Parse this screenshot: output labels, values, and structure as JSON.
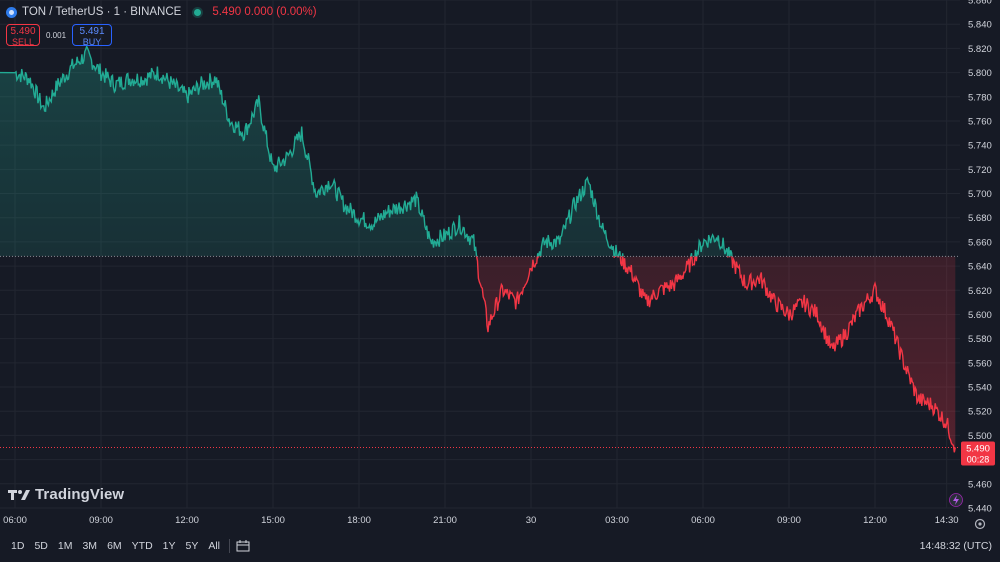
{
  "header": {
    "symbol_icon": "ton-coin-icon",
    "symbol_title": "TON / TetherUS · 1 · BINANCE",
    "quote": "5.490 0.000 (0.00%)"
  },
  "trade": {
    "sell_price": "5.490",
    "sell_label": "SELL",
    "spread": "0.001",
    "buy_price": "5.491",
    "buy_label": "BUY"
  },
  "branding": {
    "logo_text": "TradingView"
  },
  "price_tag": {
    "price": "5.490",
    "countdown": "00:28"
  },
  "periods": [
    "1D",
    "5D",
    "1M",
    "3M",
    "6M",
    "YTD",
    "1Y",
    "5Y",
    "All"
  ],
  "clock": "14:48:32 (UTC)",
  "colors": {
    "up": "#22ab94",
    "down": "#f23645",
    "background": "#161a25",
    "grid": "#222631",
    "text": "#d1d4dc"
  },
  "chart_data": {
    "type": "line",
    "series_style": "baseline",
    "baseline": 5.648,
    "last_price": 5.49,
    "ylim": [
      5.44,
      5.86
    ],
    "y_ticks": [
      5.44,
      5.46,
      5.48,
      5.5,
      5.52,
      5.54,
      5.56,
      5.58,
      5.6,
      5.62,
      5.64,
      5.66,
      5.68,
      5.7,
      5.72,
      5.74,
      5.76,
      5.78,
      5.8,
      5.82,
      5.84,
      5.86
    ],
    "y_tick_labels": [
      "5.440",
      "5.460",
      "",
      "5.500",
      "5.520",
      "5.540",
      "5.560",
      "5.580",
      "5.600",
      "5.620",
      "5.640",
      "5.660",
      "5.680",
      "5.700",
      "5.720",
      "5.740",
      "5.760",
      "5.780",
      "5.800",
      "5.820",
      "5.840",
      "5.860"
    ],
    "x_ticks": [
      "06:00",
      "09:00",
      "12:00",
      "15:00",
      "18:00",
      "21:00",
      "30",
      "03:00",
      "06:00",
      "09:00",
      "12:00",
      "14:30"
    ],
    "grid": true,
    "points": [
      [
        "06:00",
        5.8
      ],
      [
        "06:30",
        5.795
      ],
      [
        "07:00",
        5.77
      ],
      [
        "07:30",
        5.79
      ],
      [
        "08:00",
        5.805
      ],
      [
        "08:30",
        5.815
      ],
      [
        "09:00",
        5.8
      ],
      [
        "09:30",
        5.79
      ],
      [
        "10:00",
        5.795
      ],
      [
        "10:30",
        5.795
      ],
      [
        "11:00",
        5.8
      ],
      [
        "11:30",
        5.79
      ],
      [
        "12:00",
        5.78
      ],
      [
        "12:30",
        5.79
      ],
      [
        "13:00",
        5.795
      ],
      [
        "13:30",
        5.76
      ],
      [
        "14:00",
        5.75
      ],
      [
        "14:30",
        5.775
      ],
      [
        "15:00",
        5.72
      ],
      [
        "15:30",
        5.73
      ],
      [
        "16:00",
        5.75
      ],
      [
        "16:30",
        5.7
      ],
      [
        "17:00",
        5.71
      ],
      [
        "17:30",
        5.69
      ],
      [
        "18:00",
        5.68
      ],
      [
        "18:30",
        5.675
      ],
      [
        "19:00",
        5.685
      ],
      [
        "19:30",
        5.69
      ],
      [
        "20:00",
        5.695
      ],
      [
        "20:30",
        5.66
      ],
      [
        "21:00",
        5.665
      ],
      [
        "21:30",
        5.675
      ],
      [
        "22:00",
        5.66
      ],
      [
        "22:30",
        5.59
      ],
      [
        "23:00",
        5.62
      ],
      [
        "23:30",
        5.61
      ],
      [
        "00:00",
        5.64
      ],
      [
        "00:30",
        5.66
      ],
      [
        "01:00",
        5.66
      ],
      [
        "01:30",
        5.69
      ],
      [
        "02:00",
        5.71
      ],
      [
        "02:30",
        5.67
      ],
      [
        "03:00",
        5.65
      ],
      [
        "03:30",
        5.635
      ],
      [
        "04:00",
        5.61
      ],
      [
        "04:30",
        5.62
      ],
      [
        "05:00",
        5.625
      ],
      [
        "05:30",
        5.64
      ],
      [
        "06:00",
        5.66
      ],
      [
        "06:30",
        5.665
      ],
      [
        "07:00",
        5.645
      ],
      [
        "07:30",
        5.625
      ],
      [
        "08:00",
        5.63
      ],
      [
        "08:30",
        5.61
      ],
      [
        "09:00",
        5.6
      ],
      [
        "09:30",
        5.61
      ],
      [
        "10:00",
        5.6
      ],
      [
        "10:30",
        5.57
      ],
      [
        "11:00",
        5.585
      ],
      [
        "11:30",
        5.605
      ],
      [
        "12:00",
        5.62
      ],
      [
        "12:30",
        5.595
      ],
      [
        "13:00",
        5.56
      ],
      [
        "13:30",
        5.53
      ],
      [
        "14:00",
        5.525
      ],
      [
        "14:30",
        5.51
      ],
      [
        "14:48",
        5.49
      ]
    ]
  }
}
